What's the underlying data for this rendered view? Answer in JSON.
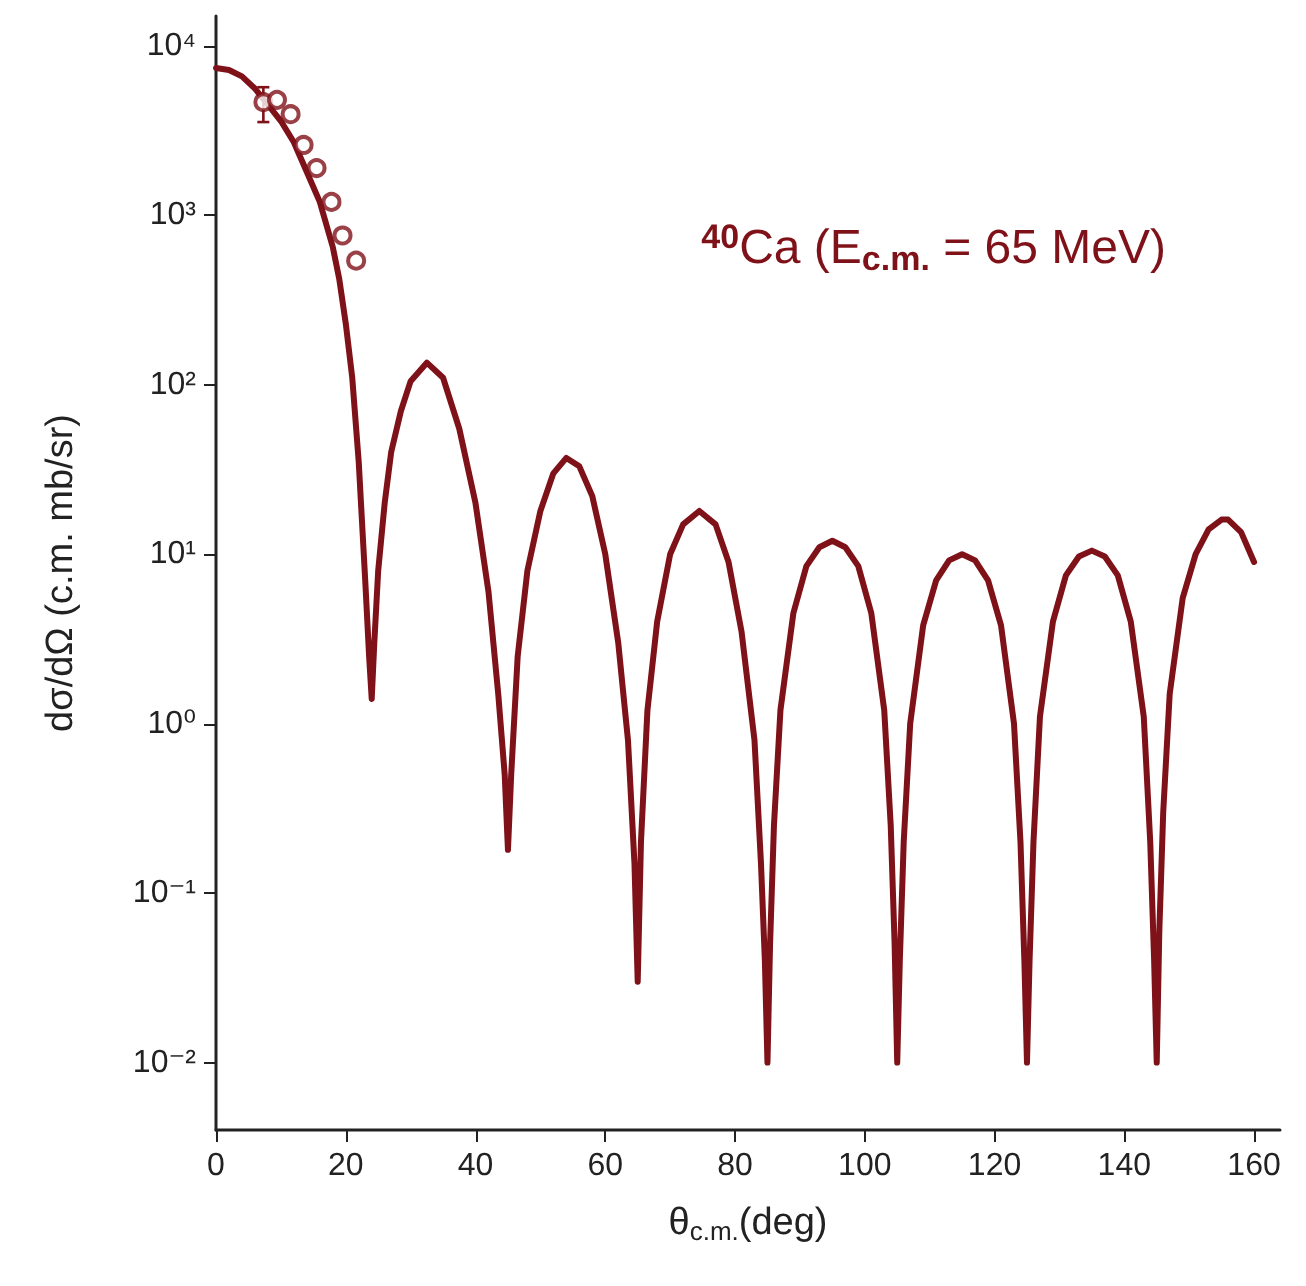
{
  "chart_data": {
    "type": "line",
    "xlabel": "θ$_{c.m.}$(deg)",
    "ylabel": "dσ/dΩ (c.m. mb/sr)",
    "annotations": [
      "$^{40}$Ca (E$_{c.m.}$ = 65 MeV)"
    ],
    "log": "y",
    "grid": false,
    "xlim": [
      0,
      164
    ],
    "xticks": [
      0,
      20,
      40,
      60,
      80,
      100,
      120,
      140,
      160
    ],
    "ylim": [
      0.004,
      15000
    ],
    "yticks": [
      {
        "value": 0.01,
        "label": "10⁻²"
      },
      {
        "value": 0.1,
        "label": "10⁻¹"
      },
      {
        "value": 1,
        "label": "10⁰"
      },
      {
        "value": 10,
        "label": "10¹"
      },
      {
        "value": 100,
        "label": "10²"
      },
      {
        "value": 1000,
        "label": "10³"
      },
      {
        "value": 10000,
        "label": "10⁴"
      }
    ],
    "series": [
      {
        "color": "#7f1119",
        "marker": "none",
        "x": [
          0,
          2,
          4,
          6,
          8,
          10,
          12,
          14,
          16,
          18,
          19,
          20,
          21,
          22,
          23,
          23.6,
          24,
          24.4,
          25,
          26,
          27,
          28.5,
          30,
          32.5,
          35,
          37.5,
          40,
          42,
          43.5,
          44.5,
          45,
          45.5,
          46.5,
          48,
          50,
          52,
          54,
          56,
          58,
          60,
          62,
          63.5,
          64.5,
          65,
          65.5,
          66.5,
          68,
          70,
          72,
          74.5,
          77,
          79,
          81,
          83,
          84,
          84.6,
          85,
          85.4,
          86,
          87,
          89,
          91,
          93,
          95,
          97,
          99,
          101,
          103,
          104,
          104.6,
          105,
          105.4,
          106,
          107,
          109,
          111,
          113,
          115,
          117,
          119,
          121,
          123,
          124,
          124.6,
          125,
          125.4,
          126,
          127,
          129,
          131,
          133,
          135,
          137,
          139,
          141,
          143,
          144,
          144.6,
          145,
          145.4,
          146,
          147,
          149,
          151,
          153,
          155,
          156,
          158,
          160
        ],
        "values": [
          7400,
          7200,
          6600,
          5600,
          4500,
          3600,
          2700,
          1800,
          1200,
          650,
          420,
          230,
          110,
          35,
          7,
          2.5,
          1.4,
          3,
          8,
          20,
          40,
          70,
          105,
          135,
          110,
          55,
          20,
          6,
          1.5,
          0.5,
          0.18,
          0.5,
          2.5,
          8,
          18,
          30,
          37,
          33,
          22,
          10,
          3,
          0.8,
          0.15,
          0.03,
          0.2,
          1.2,
          4,
          10,
          15,
          18,
          15,
          9,
          3.5,
          0.8,
          0.15,
          0.04,
          0.01,
          0.05,
          0.25,
          1.2,
          4.5,
          8.5,
          11,
          12,
          11,
          8.5,
          4.5,
          1.2,
          0.25,
          0.05,
          0.01,
          0.04,
          0.2,
          1,
          3.8,
          7,
          9.2,
          10,
          9.2,
          7,
          3.8,
          1,
          0.2,
          0.04,
          0.01,
          0.04,
          0.2,
          1.1,
          4,
          7.5,
          9.7,
          10.5,
          9.7,
          7.5,
          4,
          1.1,
          0.2,
          0.04,
          0.01,
          0.06,
          0.3,
          1.5,
          5.5,
          10,
          14,
          16,
          16,
          13.5,
          9
        ]
      },
      {
        "type": "scatter",
        "color": "#7f1119",
        "marker": "circle",
        "x": [
          7.3,
          9.4,
          11.5,
          13.5,
          15.5,
          17.8,
          19.5,
          21.6
        ],
        "values": [
          4650,
          4800,
          3950,
          2600,
          1900,
          1200,
          760,
          540
        ],
        "errors": [
          [
            3550,
            5700
          ],
          null,
          null,
          null,
          null,
          null,
          null,
          null
        ]
      }
    ]
  }
}
